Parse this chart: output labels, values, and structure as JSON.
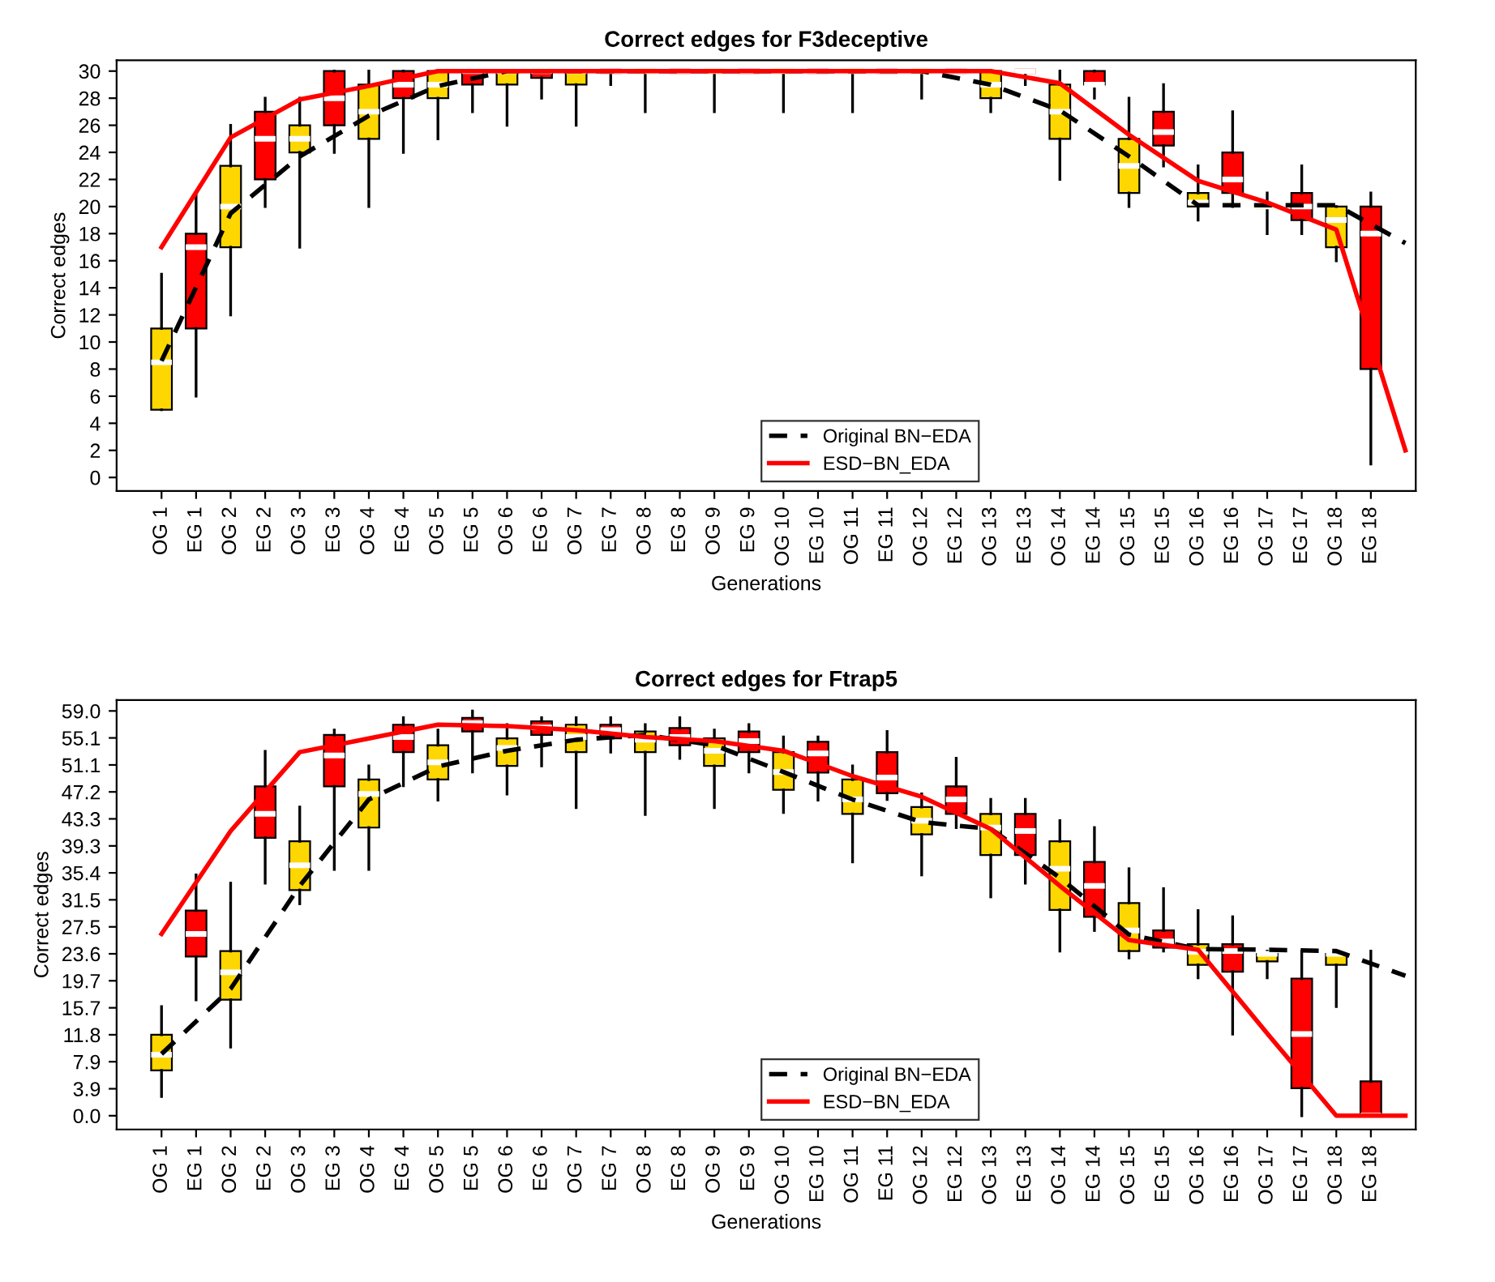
{
  "chart_data": [
    {
      "type": "box",
      "title": "Correct edges for F3deceptive",
      "xlabel": "Generations",
      "ylabel": "Correct edges",
      "categories": [
        "OG 1",
        "EG 1",
        "OG 2",
        "EG 2",
        "OG 3",
        "EG 3",
        "OG 4",
        "EG 4",
        "OG 5",
        "EG 5",
        "OG 6",
        "EG 6",
        "OG 7",
        "EG 7",
        "OG 8",
        "EG 8",
        "OG 9",
        "EG 9",
        "OG 10",
        "EG 10",
        "OG 11",
        "EG 11",
        "OG 12",
        "EG 12",
        "OG 13",
        "EG 13",
        "OG 14",
        "EG 14",
        "OG 15",
        "EG 15",
        "OG 16",
        "EG 16",
        "OG 17",
        "EG 17",
        "OG 18",
        "EG 18",
        null
      ],
      "colors": [
        "#ffd700",
        "#ff0000",
        "#ffd700",
        "#ff0000",
        "#ffd700",
        "#ff0000",
        "#ffd700",
        "#ff0000",
        "#ffd700",
        "#ff0000",
        "#ffd700",
        "#ff0000",
        "#ffd700",
        "#ff0000",
        "#ffd700",
        "#ff0000",
        "#ffd700",
        "#ff0000",
        "#ffd700",
        "#ff0000",
        "#ffd700",
        "#ff0000",
        "#ffd700",
        "#ff0000",
        "#ffd700",
        "#ff0000",
        "#ffd700",
        "#ff0000",
        "#ffd700",
        "#ff0000",
        "#ffd700",
        "#ff0000",
        "#ffd700",
        "#ff0000",
        "#ffd700",
        "#ff0000",
        null
      ],
      "boxes": [
        {
          "low": 5,
          "q1": 5,
          "median": 8.5,
          "q3": 11,
          "high": 15
        },
        {
          "low": 6,
          "q1": 11,
          "median": 17,
          "q3": 18,
          "high": 21
        },
        {
          "low": 12,
          "q1": 17,
          "median": 20,
          "q3": 23,
          "high": 26
        },
        {
          "low": 20,
          "q1": 22,
          "median": 25,
          "q3": 27,
          "high": 28
        },
        {
          "low": 17,
          "q1": 24,
          "median": 25,
          "q3": 26,
          "high": 28
        },
        {
          "low": 24,
          "q1": 26,
          "median": 28,
          "q3": 30,
          "high": 30
        },
        {
          "low": 20,
          "q1": 25,
          "median": 27,
          "q3": 29,
          "high": 30
        },
        {
          "low": 24,
          "q1": 28,
          "median": 29,
          "q3": 30,
          "high": 30
        },
        {
          "low": 25,
          "q1": 28,
          "median": 29,
          "q3": 30,
          "high": 30
        },
        {
          "low": 27,
          "q1": 29,
          "median": 30,
          "q3": 30,
          "high": 30
        },
        {
          "low": 26,
          "q1": 29,
          "median": 30,
          "q3": 30,
          "high": 30
        },
        {
          "low": 28,
          "q1": 29.5,
          "median": 30,
          "q3": 30,
          "high": 30
        },
        {
          "low": 26,
          "q1": 29,
          "median": 30,
          "q3": 30,
          "high": 30
        },
        {
          "low": 29,
          "q1": 30,
          "median": 30,
          "q3": 30,
          "high": 30
        },
        {
          "low": 27,
          "q1": 30,
          "median": 30,
          "q3": 30,
          "high": 30
        },
        {
          "low": 30,
          "q1": 30,
          "median": 30,
          "q3": 30,
          "high": 30
        },
        {
          "low": 27,
          "q1": 30,
          "median": 30,
          "q3": 30,
          "high": 30
        },
        {
          "low": 30,
          "q1": 30,
          "median": 30,
          "q3": 30,
          "high": 30
        },
        {
          "low": 27,
          "q1": 30,
          "median": 30,
          "q3": 30,
          "high": 30
        },
        {
          "low": 30,
          "q1": 30,
          "median": 30,
          "q3": 30,
          "high": 30
        },
        {
          "low": 27,
          "q1": 30,
          "median": 30,
          "q3": 30,
          "high": 30
        },
        {
          "low": 30,
          "q1": 30,
          "median": 30,
          "q3": 30,
          "high": 30
        },
        {
          "low": 28,
          "q1": 30,
          "median": 30,
          "q3": 30,
          "high": 30
        },
        {
          "low": 30,
          "q1": 30,
          "median": 30,
          "q3": 30,
          "high": 30
        },
        {
          "low": 27,
          "q1": 28,
          "median": 29,
          "q3": 30,
          "high": 30
        },
        {
          "low": 29,
          "q1": 30,
          "median": 30,
          "q3": 30,
          "high": 30
        },
        {
          "low": 22,
          "q1": 25,
          "median": 27,
          "q3": 29,
          "high": 30
        },
        {
          "low": 28,
          "q1": 29,
          "median": 29,
          "q3": 30,
          "high": 30
        },
        {
          "low": 20,
          "q1": 21,
          "median": 23,
          "q3": 25,
          "high": 28
        },
        {
          "low": 23,
          "q1": 24.5,
          "median": 25.5,
          "q3": 27,
          "high": 29
        },
        {
          "low": 19,
          "q1": 20,
          "median": 20.3,
          "q3": 21,
          "high": 23
        },
        {
          "low": 20,
          "q1": 21,
          "median": 22,
          "q3": 24,
          "high": 27
        },
        {
          "low": 18,
          "q1": 20,
          "median": 20,
          "q3": 20,
          "high": 21
        },
        {
          "low": 18,
          "q1": 19,
          "median": 20,
          "q3": 21,
          "high": 23
        },
        {
          "low": 16,
          "q1": 17,
          "median": 19,
          "q3": 20,
          "high": 20
        },
        {
          "low": 1,
          "q1": 8,
          "median": 18,
          "q3": 20,
          "high": 21
        },
        null
      ],
      "series": [
        {
          "name": "Original BN−EDA",
          "type": "line",
          "color": "#000000",
          "line_style": "dashed",
          "values": [
            8.6,
            null,
            19.5,
            null,
            23.7,
            null,
            26.7,
            null,
            28.9,
            null,
            30,
            null,
            30,
            null,
            30,
            null,
            30,
            null,
            30,
            null,
            30,
            null,
            30,
            null,
            29,
            null,
            27.1,
            null,
            23.7,
            null,
            20.1,
            null,
            20.1,
            null,
            20.1,
            null,
            17.3
          ]
        },
        {
          "name": "ESD−BN_EDA",
          "type": "line",
          "color": "#ff0000",
          "line_style": "solid",
          "values": [
            17,
            null,
            25.1,
            null,
            27.9,
            null,
            28.9,
            null,
            30,
            null,
            30,
            null,
            30,
            null,
            30,
            null,
            30,
            null,
            30,
            null,
            30,
            null,
            30,
            null,
            30,
            null,
            29.1,
            null,
            25.3,
            null,
            21.9,
            null,
            20.3,
            null,
            18.3,
            null,
            2
          ]
        }
      ],
      "ylim": [
        -1,
        30.8
      ],
      "yticks": [
        0,
        2,
        4,
        6,
        8,
        10,
        12,
        14,
        16,
        18,
        20,
        22,
        24,
        26,
        28,
        30
      ],
      "legend": "bottom",
      "grid": false
    },
    {
      "type": "box",
      "title": "Correct edges for Ftrap5",
      "xlabel": "Generations",
      "ylabel": "Correct edges",
      "categories": [
        "OG 1",
        "EG 1",
        "OG 2",
        "EG 2",
        "OG 3",
        "EG 3",
        "OG 4",
        "EG 4",
        "OG 5",
        "EG 5",
        "OG 6",
        "EG 6",
        "OG 7",
        "EG 7",
        "OG 8",
        "EG 8",
        "OG 9",
        "EG 9",
        "OG 10",
        "EG 10",
        "OG 11",
        "EG 11",
        "OG 12",
        "EG 12",
        "OG 13",
        "EG 13",
        "OG 14",
        "EG 14",
        "OG 15",
        "EG 15",
        "OG 16",
        "EG 16",
        "OG 17",
        "EG 17",
        "OG 18",
        "EG 18",
        null
      ],
      "colors": [
        "#ffd700",
        "#ff0000",
        "#ffd700",
        "#ff0000",
        "#ffd700",
        "#ff0000",
        "#ffd700",
        "#ff0000",
        "#ffd700",
        "#ff0000",
        "#ffd700",
        "#ff0000",
        "#ffd700",
        "#ff0000",
        "#ffd700",
        "#ff0000",
        "#ffd700",
        "#ff0000",
        "#ffd700",
        "#ff0000",
        "#ffd700",
        "#ff0000",
        "#ffd700",
        "#ff0000",
        "#ffd700",
        "#ff0000",
        "#ffd700",
        "#ff0000",
        "#ffd700",
        "#ff0000",
        "#ffd700",
        "#ff0000",
        "#ffd700",
        "#ff0000",
        "#ffd700",
        "#ff0000",
        null
      ],
      "boxes": [
        {
          "low": 2.8,
          "q1": 6.6,
          "median": 8.9,
          "q3": 11.8,
          "high": 15.9
        },
        {
          "low": 16.9,
          "q1": 23.2,
          "median": 26.5,
          "q3": 29.9,
          "high": 35.1
        },
        {
          "low": 10,
          "q1": 16.9,
          "median": 20.9,
          "q3": 24,
          "high": 33.9
        },
        {
          "low": 33.9,
          "q1": 40.5,
          "median": 44,
          "q3": 48,
          "high": 53.1
        },
        {
          "low": 30.9,
          "q1": 32.9,
          "median": 36.5,
          "q3": 40,
          "high": 45
        },
        {
          "low": 35.9,
          "q1": 48,
          "median": 52.5,
          "q3": 55.5,
          "high": 56.2
        },
        {
          "low": 35.9,
          "q1": 42,
          "median": 46.9,
          "q3": 49,
          "high": 51
        },
        {
          "low": 48.1,
          "q1": 53,
          "median": 55.2,
          "q3": 57,
          "high": 58
        },
        {
          "low": 46,
          "q1": 49,
          "median": 51.5,
          "q3": 54,
          "high": 56.2
        },
        {
          "low": 50.1,
          "q1": 56,
          "median": 57.2,
          "q3": 58,
          "high": 59
        },
        {
          "low": 46.9,
          "q1": 51,
          "median": 53.6,
          "q3": 55,
          "high": 57
        },
        {
          "low": 51,
          "q1": 55.5,
          "median": 56.6,
          "q3": 57.5,
          "high": 58
        },
        {
          "low": 44.9,
          "q1": 53,
          "median": 55.2,
          "q3": 57,
          "high": 58
        },
        {
          "low": 53,
          "q1": 55,
          "median": 56.2,
          "q3": 57,
          "high": 58
        },
        {
          "low": 43.9,
          "q1": 53,
          "median": 54.8,
          "q3": 56,
          "high": 57
        },
        {
          "low": 52.1,
          "q1": 54,
          "median": 55.2,
          "q3": 56.5,
          "high": 58
        },
        {
          "low": 44.9,
          "q1": 51,
          "median": 53.2,
          "q3": 55,
          "high": 56.2
        },
        {
          "low": 50.1,
          "q1": 53,
          "median": 54.6,
          "q3": 56,
          "high": 57
        },
        {
          "low": 44.2,
          "q1": 47.5,
          "median": 50.1,
          "q3": 53,
          "high": 55.2
        },
        {
          "low": 46,
          "q1": 50,
          "median": 52.8,
          "q3": 54.5,
          "high": 55.2
        },
        {
          "low": 37,
          "q1": 44,
          "median": 46.1,
          "q3": 49,
          "high": 51
        },
        {
          "low": 46.1,
          "q1": 47,
          "median": 49.3,
          "q3": 53,
          "high": 56
        },
        {
          "low": 35.1,
          "q1": 41,
          "median": 43,
          "q3": 45,
          "high": 46.9
        },
        {
          "low": 42,
          "q1": 44,
          "median": 46.1,
          "q3": 48,
          "high": 52.1
        },
        {
          "low": 31.9,
          "q1": 38,
          "median": 42,
          "q3": 44,
          "high": 46.1
        },
        {
          "low": 33.9,
          "q1": 38,
          "median": 41.5,
          "q3": 44,
          "high": 46.1
        },
        {
          "low": 24,
          "q1": 30,
          "median": 36,
          "q3": 40,
          "high": 43
        },
        {
          "low": 27,
          "q1": 29,
          "median": 33.5,
          "q3": 37,
          "high": 42
        },
        {
          "low": 23,
          "q1": 24,
          "median": 27,
          "q3": 31,
          "high": 36
        },
        {
          "low": 24,
          "q1": 24.5,
          "median": 25.4,
          "q3": 27,
          "high": 33.1
        },
        {
          "low": 20.1,
          "q1": 22,
          "median": 23.9,
          "q3": 25,
          "high": 29.9
        },
        {
          "low": 11.9,
          "q1": 21,
          "median": 24,
          "q3": 25,
          "high": 29
        },
        {
          "low": 20.1,
          "q1": 22.5,
          "median": 23.6,
          "q3": 23.6,
          "high": 24
        },
        {
          "low": 0,
          "q1": 4,
          "median": 11.9,
          "q3": 20,
          "high": 24
        },
        {
          "low": 15.9,
          "q1": 22,
          "median": 23.6,
          "q3": 23.6,
          "high": 24
        },
        {
          "low": 0,
          "q1": 0,
          "median": 0,
          "q3": 5,
          "high": 24
        },
        null
      ],
      "series": [
        {
          "name": "Original BN−EDA",
          "type": "line",
          "color": "#000000",
          "line_style": "dashed",
          "values": [
            9,
            null,
            18.5,
            null,
            33.5,
            null,
            46.1,
            null,
            50.9,
            null,
            53.2,
            null,
            54.8,
            null,
            55.5,
            null,
            54,
            null,
            50.1,
            null,
            46.1,
            null,
            42.8,
            null,
            41.8,
            null,
            34.7,
            null,
            26.4,
            null,
            24.3,
            null,
            24.2,
            null,
            24,
            null,
            20.4
          ]
        },
        {
          "name": "ESD−BN_EDA",
          "type": "line",
          "color": "#ff0000",
          "line_style": "solid",
          "values": [
            26.5,
            null,
            41.5,
            null,
            53,
            null,
            55,
            null,
            57,
            null,
            56.8,
            null,
            56.2,
            null,
            55.2,
            null,
            54.6,
            null,
            53.2,
            null,
            49.5,
            null,
            46.5,
            null,
            41.8,
            null,
            33.5,
            null,
            25.6,
            null,
            24.2,
            null,
            12,
            null,
            0,
            null,
            0
          ]
        }
      ],
      "ylim": [
        -2,
        60.6
      ],
      "yticks": [
        {
          "value": 0,
          "label": "0.0"
        },
        {
          "value": 3.93,
          "label": "3.9"
        },
        {
          "value": 7.87,
          "label": "7.9"
        },
        {
          "value": 11.8,
          "label": "11.8"
        },
        {
          "value": 15.73,
          "label": "15.7"
        },
        {
          "value": 19.67,
          "label": "19.7"
        },
        {
          "value": 23.6,
          "label": "23.6"
        },
        {
          "value": 27.53,
          "label": "27.5"
        },
        {
          "value": 31.47,
          "label": "31.5"
        },
        {
          "value": 35.4,
          "label": "35.4"
        },
        {
          "value": 39.33,
          "label": "39.3"
        },
        {
          "value": 43.27,
          "label": "43.3"
        },
        {
          "value": 47.2,
          "label": "47.2"
        },
        {
          "value": 51.13,
          "label": "51.1"
        },
        {
          "value": 55.07,
          "label": "55.1"
        },
        {
          "value": 59,
          "label": "59.0"
        }
      ],
      "legend": "bottom",
      "grid": false
    }
  ]
}
